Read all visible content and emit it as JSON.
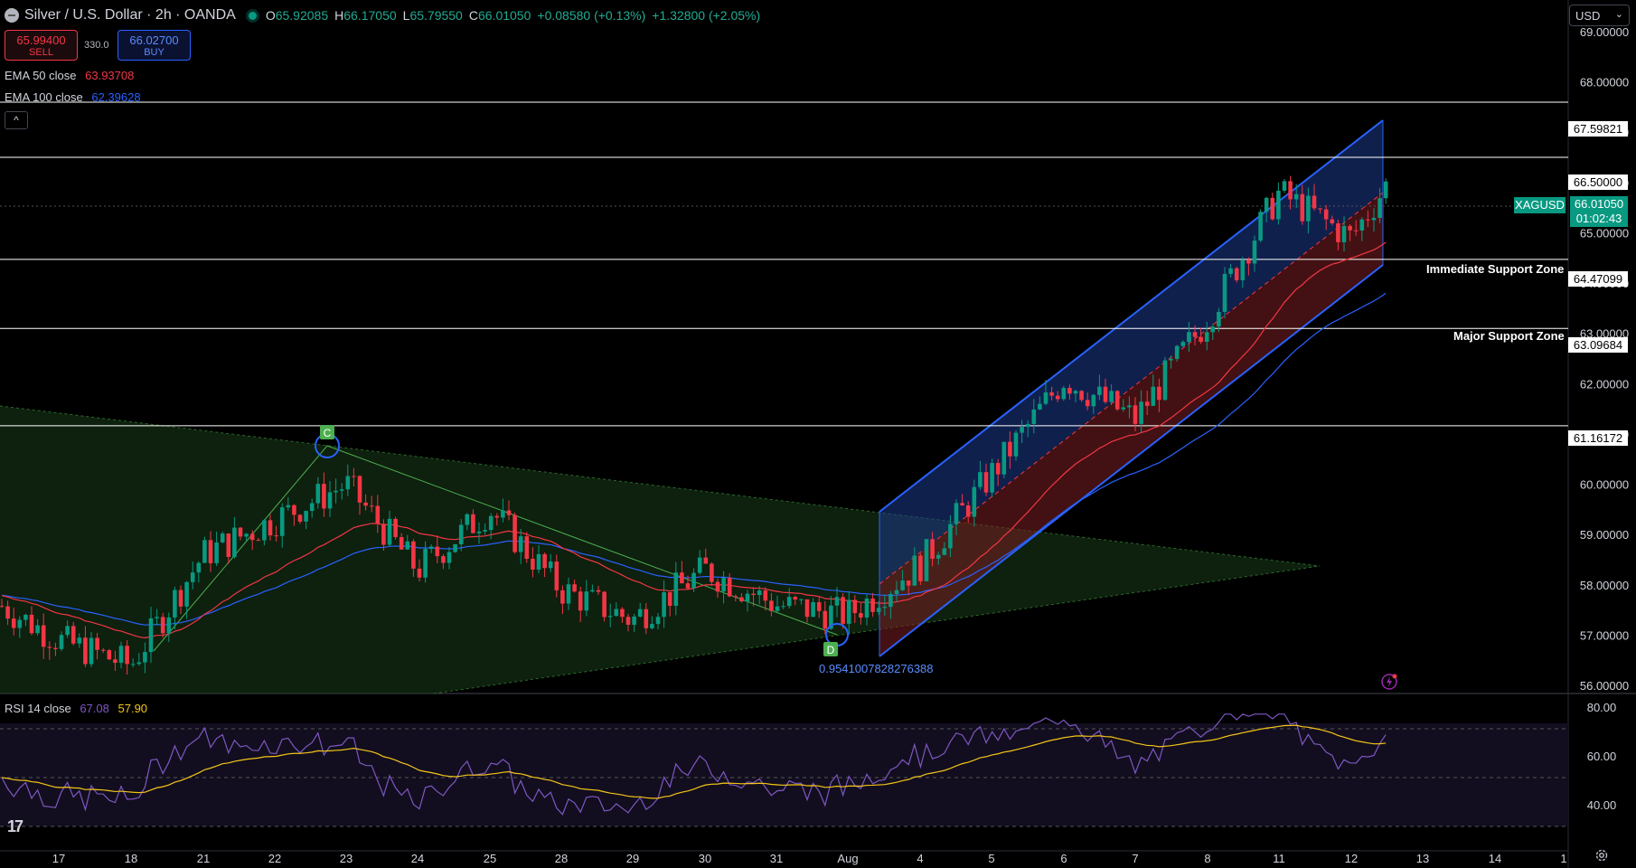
{
  "header": {
    "title": "Silver / U.S. Dollar · 2h · OANDA",
    "open_label": "O",
    "open": "65.92085",
    "high_label": "H",
    "high": "66.17050",
    "low_label": "L",
    "low": "65.79550",
    "close_label": "C",
    "close": "66.01050",
    "change": "+0.08580 (+0.13%)",
    "change2": "+1.32800 (+2.05%)"
  },
  "trade": {
    "sell_price": "65.99400",
    "sell_label": "SELL",
    "spread": "330.0",
    "buy_price": "66.02700",
    "buy_label": "BUY"
  },
  "indicators": {
    "ema50_label": "EMA 50 close",
    "ema50_value": "63.93708",
    "ema100_label": "EMA 100 close",
    "ema100_value": "62.39628",
    "rsi_label": "RSI 14 close",
    "rsi_value": "67.08",
    "rsi_ma_value": "57.90"
  },
  "currency": "USD",
  "colors": {
    "bull": "#089981",
    "bear": "#f23645",
    "ema50": "#f23645",
    "ema100": "#2962ff",
    "rsi": "#7e57c2",
    "rsi_ma": "#f5c518"
  },
  "annotations": {
    "immediate_support": "Immediate Support Zone",
    "major_support": "Major Support Zone",
    "point_c": "C",
    "point_d": "D",
    "fib_value": "0.9541007828276388"
  },
  "price_tags": [
    "67.59821",
    "66.50000",
    "64.47099",
    "63.09684",
    "61.16172"
  ],
  "current": {
    "symbol": "XAGUSD",
    "price": "66.01050",
    "countdown": "01:02:43"
  },
  "chart_data": {
    "type": "candlestick",
    "y_axis": {
      "min": 56.0,
      "max": 69.0,
      "ticks": [
        "69.00000",
        "68.00000",
        "67.00000",
        "66.00000",
        "65.00000",
        "64.00000",
        "63.00000",
        "62.00000",
        "61.00000",
        "60.00000",
        "59.00000",
        "58.00000",
        "57.00000",
        "56.00000"
      ]
    },
    "x_axis": {
      "labels": [
        "17",
        "18",
        "21",
        "22",
        "23",
        "24",
        "25",
        "28",
        "29",
        "30",
        "31",
        "Aug",
        "4",
        "5",
        "6",
        "7",
        "8",
        "11",
        "12",
        "13",
        "14",
        "1"
      ]
    },
    "ohlc_points": [
      {
        "day": "17",
        "close": 56.9
      },
      {
        "day": "18",
        "close": 56.4
      },
      {
        "day": "21",
        "close": 58.6
      },
      {
        "day": "22",
        "close": 59.3
      },
      {
        "day": "23",
        "close": 60.0
      },
      {
        "day": "24",
        "close": 58.3
      },
      {
        "day": "25",
        "close": 59.5
      },
      {
        "day": "28",
        "close": 57.9
      },
      {
        "day": "29",
        "close": 57.3
      },
      {
        "day": "30",
        "close": 58.3
      },
      {
        "day": "31",
        "close": 57.6
      },
      {
        "day": "Aug",
        "close": 57.4
      },
      {
        "day": "4",
        "close": 58.4
      },
      {
        "day": "5",
        "close": 60.2
      },
      {
        "day": "6",
        "close": 62.1
      },
      {
        "day": "7",
        "close": 61.3
      },
      {
        "day": "8",
        "close": 63.3
      },
      {
        "day": "11",
        "close": 65.8
      },
      {
        "day": "12",
        "close": 64.9
      },
      {
        "day": "12.5",
        "close": 66.01
      }
    ],
    "horizontal_levels": [
      67.59821,
      66.5,
      64.47099,
      63.09684,
      61.16172
    ],
    "rsi": {
      "ticks": [
        "80.00",
        "60.00",
        "40.00"
      ],
      "min": 20,
      "max": 80,
      "bands": [
        70,
        50,
        30
      ]
    }
  }
}
